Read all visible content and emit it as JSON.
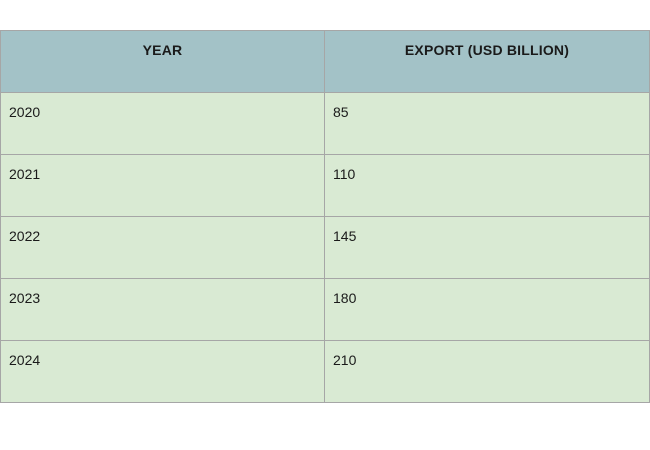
{
  "chart_data": {
    "type": "table",
    "columns": [
      "YEAR",
      "EXPORT (USD BILLION)"
    ],
    "rows": [
      [
        "2020",
        "85"
      ],
      [
        "2021",
        "110"
      ],
      [
        "2022",
        "145"
      ],
      [
        "2023",
        "180"
      ],
      [
        "2024",
        "210"
      ]
    ],
    "x": [
      2020,
      2021,
      2022,
      2023,
      2024
    ],
    "values": [
      85,
      110,
      145,
      180,
      210
    ]
  },
  "colors": {
    "header_background": "#a3c2c7",
    "cell_background": "#d9ead3",
    "border": "#a6a6a6"
  }
}
